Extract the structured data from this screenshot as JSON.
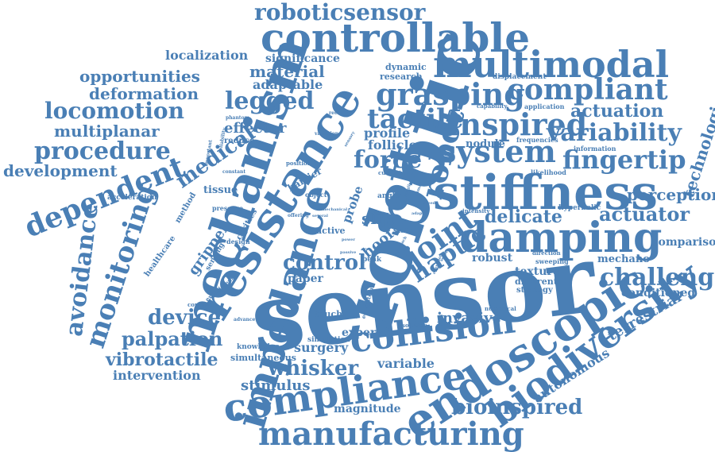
{
  "word_color": "#4a7fb5",
  "words": [
    "sensor",
    "robotic",
    "stiffness",
    "damping",
    "mechanism",
    "resistance",
    "impedance",
    "compliance",
    "endoscopic",
    "biodiversity",
    "controllable",
    "multimodal",
    "roboticsensor",
    "collision",
    "manufacturing",
    "soft",
    "grasping",
    "compliant",
    "inspired",
    "system",
    "fingertip",
    "variability",
    "legged",
    "tactile",
    "joint",
    "robot",
    "haptic",
    "force",
    "challenge",
    "procedure",
    "locomotion",
    "dependent",
    "monitoring",
    "avoidance",
    "delicate",
    "actuator",
    "perception",
    "whisker",
    "palpation",
    "device",
    "vibrotactile",
    "bioinspired",
    "control",
    "medical",
    "opportunities",
    "deformation",
    "multiplanar",
    "development",
    "localization",
    "material",
    "adaptable",
    "significance",
    "actuation",
    "technologies",
    "terrestrial",
    "autonomous",
    "conditioned",
    "comparison",
    "mechano",
    "invasive",
    "surgery",
    "variable",
    "stimulus",
    "magnitude",
    "intervention",
    "effector",
    "follicle",
    "profile",
    "nodule",
    "texture",
    "different",
    "strategy",
    "robust",
    "gripper",
    "tissue",
    "slip",
    "hoof",
    "active",
    "paper",
    "expert",
    "simultaneous",
    "knowledge",
    "simulation",
    "touch",
    "dynamic",
    "research",
    "displacement",
    "application",
    "capability",
    "information",
    "frequencies",
    "likelihood",
    "hyperbolic",
    "sweeping",
    "direction",
    "intensity",
    "numerical",
    "solution",
    "ecosystem",
    "state",
    "peak",
    "probe",
    "angle",
    "barrier",
    "object",
    "position",
    "current",
    "acceleration",
    "healthcare",
    "method",
    "pressure",
    "cavities",
    "sensing",
    "design",
    "experiment",
    "condition",
    "advance",
    "reduce",
    "important",
    "constant",
    "phantom",
    "reliability",
    "receptor",
    "variation",
    "sensory",
    "offering",
    "several",
    "mechanical",
    "power",
    "passive",
    "area",
    "speed",
    "adapt",
    "human",
    "fragile",
    "offer",
    "data",
    "approach",
    "operation",
    "sense"
  ]
}
